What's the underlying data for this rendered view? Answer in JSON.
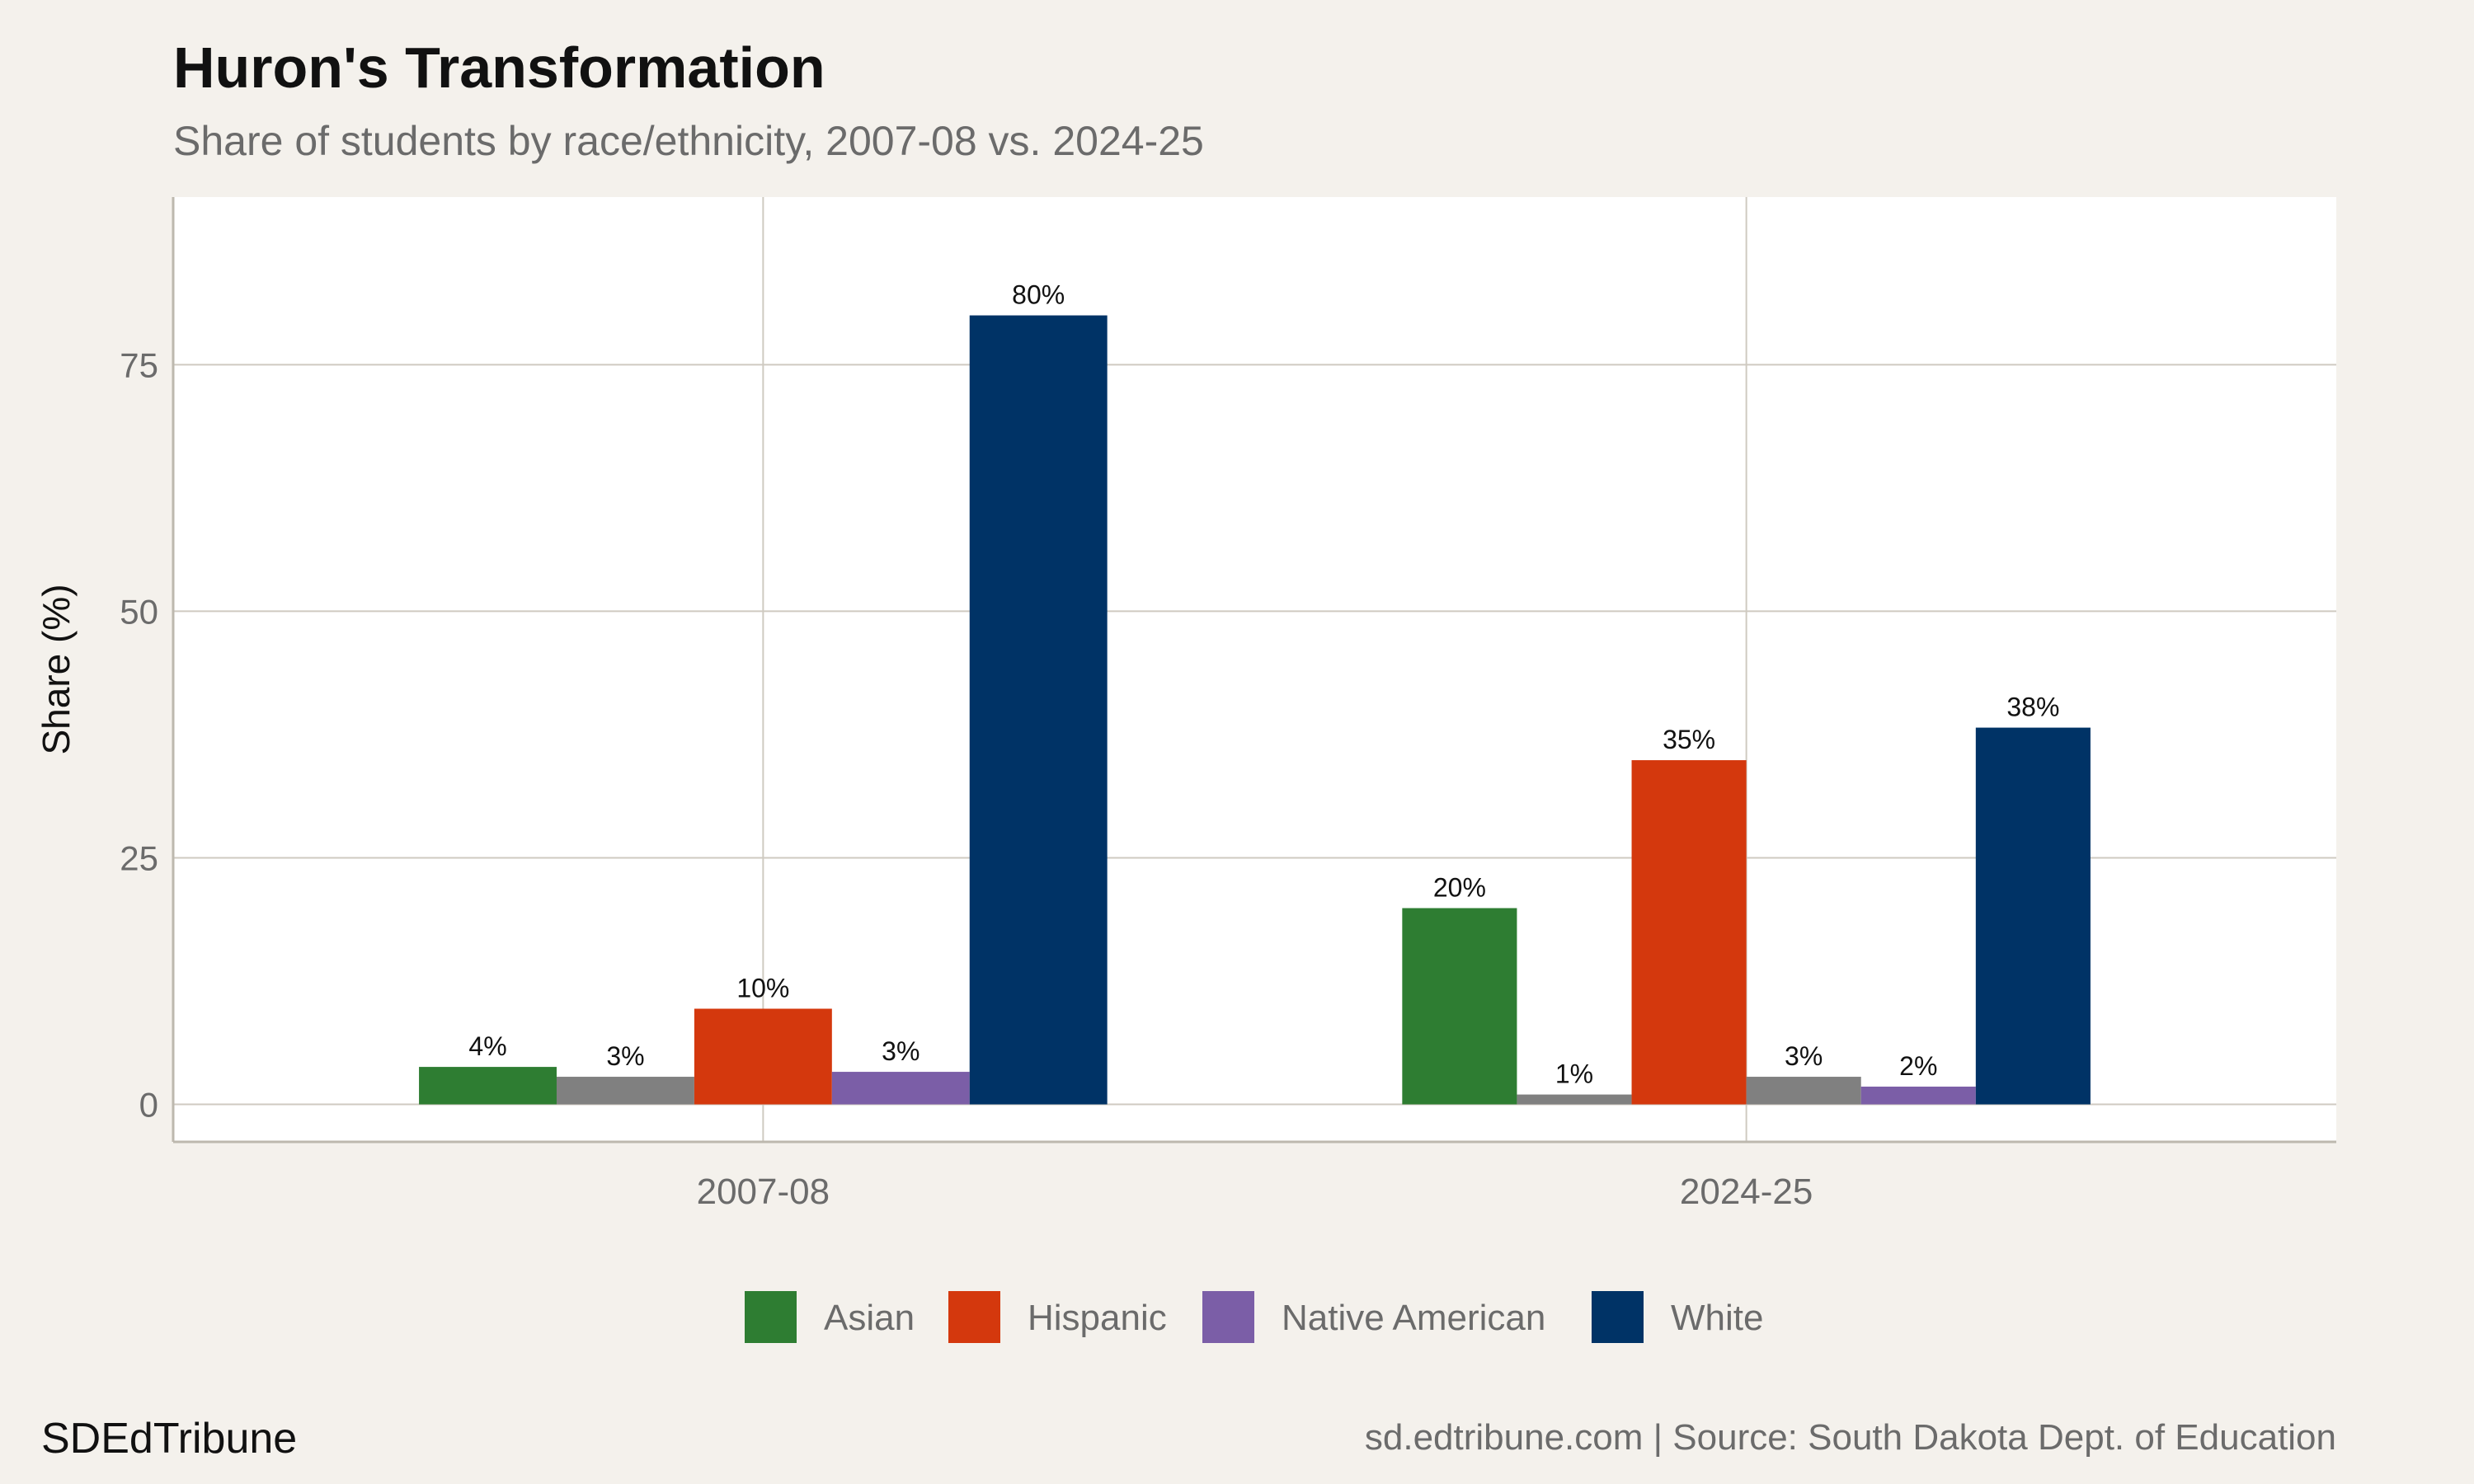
{
  "chart_data": {
    "type": "bar",
    "title": "Huron's Transformation",
    "subtitle": "Share of students by race/ethnicity, 2007-08 vs. 2024-25",
    "xlabel": "",
    "ylabel": "Share (%)",
    "ylim": [
      -3.8,
      92
    ],
    "yticks": [
      0,
      25,
      50,
      75
    ],
    "grid": true,
    "legend_position": "bottom",
    "categories": [
      "2007-08",
      "2024-25"
    ],
    "groups": [
      {
        "category": "2007-08",
        "bars": [
          {
            "series": "Asian",
            "value": 3.8,
            "label": "4%"
          },
          {
            "series": null,
            "value": 2.8,
            "label": "3%"
          },
          {
            "series": "Hispanic",
            "value": 9.7,
            "label": "10%"
          },
          {
            "series": "Native American",
            "value": 3.3,
            "label": "3%"
          },
          {
            "series": "White",
            "value": 80.0,
            "label": "80%"
          }
        ]
      },
      {
        "category": "2024-25",
        "bars": [
          {
            "series": "Asian",
            "value": 19.9,
            "label": "20%"
          },
          {
            "series": null,
            "value": 1.0,
            "label": "1%"
          },
          {
            "series": "Hispanic",
            "value": 34.9,
            "label": "35%"
          },
          {
            "series": null,
            "value": 2.8,
            "label": "3%"
          },
          {
            "series": "Native American",
            "value": 1.8,
            "label": "2%"
          },
          {
            "series": "White",
            "value": 38.2,
            "label": "38%"
          }
        ]
      }
    ],
    "legend": [
      {
        "name": "Asian",
        "color": "#2e7d32"
      },
      {
        "name": "Hispanic",
        "color": "#d4380d"
      },
      {
        "name": "Native American",
        "color": "#7b5ea7"
      },
      {
        "name": "White",
        "color": "#003366"
      }
    ],
    "unlabeled_color": "#808080"
  },
  "footer": {
    "brand": "SDEdTribune",
    "source": "sd.edtribune.com | Source: South Dakota Dept. of Education"
  },
  "colors": {
    "background": "#f4f1ec",
    "panel": "#ffffff",
    "grid": "#cfcac1"
  }
}
